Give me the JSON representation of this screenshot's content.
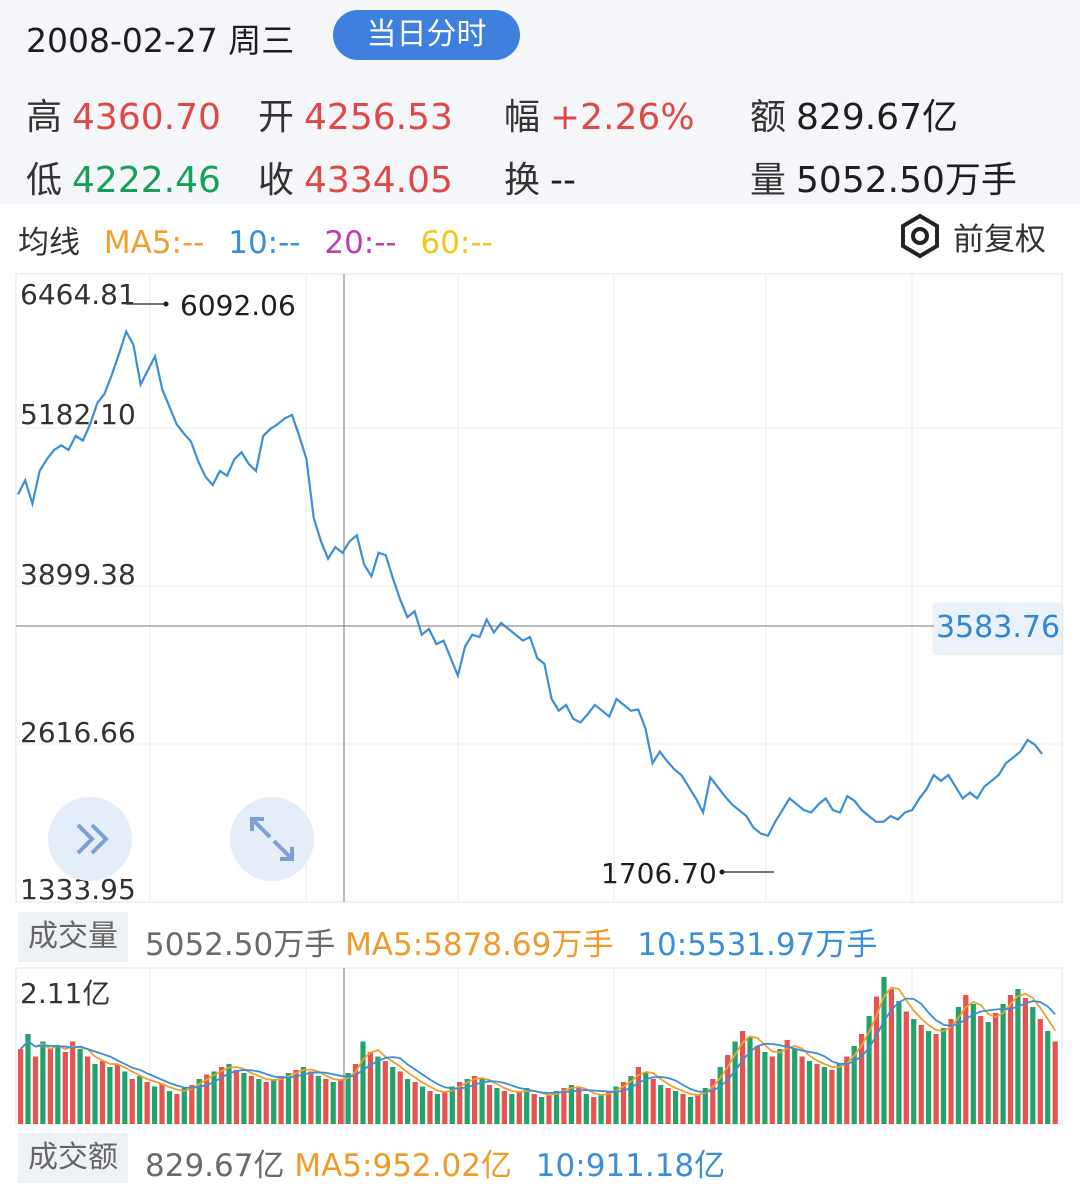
{
  "header": {
    "date": "2008-02-27 周三",
    "intraday_button": "当日分时",
    "stats": {
      "high_label": "高",
      "high": "4360.70",
      "open_label": "开",
      "open": "4256.53",
      "amp_label": "幅",
      "amp": "+2.26%",
      "amount_label": "额",
      "amount": "829.67亿",
      "low_label": "低",
      "low": "4222.46",
      "close_label": "收",
      "close": "4334.05",
      "turnover_label": "换",
      "turnover": "--",
      "volume_label": "量",
      "volume": "5052.50万手"
    }
  },
  "ma_bar": {
    "label": "均线",
    "ma5": "MA5:--",
    "ma10": "10:--",
    "ma20": "20:--",
    "ma60": "60:--",
    "adjust": "前复权",
    "colors": {
      "ma5": "#f0a030",
      "ma10": "#3a8fd8",
      "ma20": "#c23bb5",
      "ma60": "#f3c619"
    }
  },
  "price_axis": {
    "labels": [
      "6464.81",
      "5182.10",
      "3899.38",
      "2616.66",
      "1333.95"
    ],
    "max_label": "6092.06",
    "min_label": "1706.70",
    "crosshair_value": "3583.76"
  },
  "volume_bar": {
    "label": "成交量",
    "value": "5052.50万手",
    "ma5": "MA5:5878.69万手",
    "ma10": "10:5531.97万手",
    "axis_top": "2.11亿"
  },
  "amount_bar": {
    "label": "成交额",
    "value": "829.67亿",
    "ma5": "MA5:952.02亿",
    "ma10": "10:911.18亿"
  },
  "chart_data": {
    "type": "line",
    "y_range": [
      1333.95,
      6464.81
    ],
    "price_points": [
      [
        0,
        4700
      ],
      [
        1,
        4820
      ],
      [
        2,
        4620
      ],
      [
        3,
        4900
      ],
      [
        4,
        5000
      ],
      [
        5,
        5080
      ],
      [
        6,
        5120
      ],
      [
        7,
        5080
      ],
      [
        8,
        5200
      ],
      [
        9,
        5160
      ],
      [
        10,
        5300
      ],
      [
        11,
        5480
      ],
      [
        12,
        5560
      ],
      [
        13,
        5720
      ],
      [
        14,
        5900
      ],
      [
        15,
        6092
      ],
      [
        16,
        5980
      ],
      [
        17,
        5640
      ],
      [
        18,
        5760
      ],
      [
        19,
        5880
      ],
      [
        20,
        5600
      ],
      [
        21,
        5450
      ],
      [
        22,
        5300
      ],
      [
        23,
        5220
      ],
      [
        24,
        5150
      ],
      [
        25,
        4980
      ],
      [
        26,
        4850
      ],
      [
        27,
        4780
      ],
      [
        28,
        4900
      ],
      [
        29,
        4860
      ],
      [
        30,
        5000
      ],
      [
        31,
        5060
      ],
      [
        32,
        4960
      ],
      [
        33,
        4900
      ],
      [
        34,
        5200
      ],
      [
        35,
        5260
      ],
      [
        36,
        5300
      ],
      [
        37,
        5350
      ],
      [
        38,
        5380
      ],
      [
        39,
        5200
      ],
      [
        40,
        5000
      ],
      [
        41,
        4500
      ],
      [
        42,
        4300
      ],
      [
        43,
        4150
      ],
      [
        44,
        4250
      ],
      [
        45,
        4200
      ],
      [
        46,
        4300
      ],
      [
        47,
        4350
      ],
      [
        48,
        4100
      ],
      [
        49,
        4000
      ],
      [
        50,
        4200
      ],
      [
        51,
        4180
      ],
      [
        52,
        3980
      ],
      [
        53,
        3800
      ],
      [
        54,
        3650
      ],
      [
        55,
        3700
      ],
      [
        56,
        3500
      ],
      [
        57,
        3550
      ],
      [
        58,
        3420
      ],
      [
        59,
        3450
      ],
      [
        60,
        3300
      ],
      [
        61,
        3150
      ],
      [
        62,
        3400
      ],
      [
        63,
        3500
      ],
      [
        64,
        3480
      ],
      [
        65,
        3630
      ],
      [
        66,
        3520
      ],
      [
        67,
        3600
      ],
      [
        68,
        3550
      ],
      [
        69,
        3500
      ],
      [
        70,
        3450
      ],
      [
        71,
        3480
      ],
      [
        72,
        3300
      ],
      [
        73,
        3250
      ],
      [
        74,
        2950
      ],
      [
        75,
        2850
      ],
      [
        76,
        2900
      ],
      [
        77,
        2780
      ],
      [
        78,
        2750
      ],
      [
        79,
        2820
      ],
      [
        80,
        2900
      ],
      [
        81,
        2850
      ],
      [
        82,
        2800
      ],
      [
        83,
        2950
      ],
      [
        84,
        2900
      ],
      [
        85,
        2850
      ],
      [
        86,
        2860
      ],
      [
        87,
        2700
      ],
      [
        88,
        2400
      ],
      [
        89,
        2500
      ],
      [
        90,
        2420
      ],
      [
        91,
        2350
      ],
      [
        92,
        2300
      ],
      [
        93,
        2200
      ],
      [
        94,
        2100
      ],
      [
        95,
        1980
      ],
      [
        96,
        2280
      ],
      [
        97,
        2200
      ],
      [
        98,
        2120
      ],
      [
        99,
        2050
      ],
      [
        100,
        2000
      ],
      [
        101,
        1950
      ],
      [
        102,
        1850
      ],
      [
        103,
        1800
      ],
      [
        104,
        1780
      ],
      [
        105,
        1900
      ],
      [
        106,
        2000
      ],
      [
        107,
        2100
      ],
      [
        108,
        2050
      ],
      [
        109,
        2000
      ],
      [
        110,
        1980
      ],
      [
        111,
        2050
      ],
      [
        112,
        2100
      ],
      [
        113,
        2000
      ],
      [
        114,
        1980
      ],
      [
        115,
        2120
      ],
      [
        116,
        2080
      ],
      [
        117,
        2000
      ],
      [
        118,
        1950
      ],
      [
        119,
        1900
      ],
      [
        120,
        1900
      ],
      [
        121,
        1950
      ],
      [
        122,
        1920
      ],
      [
        123,
        1980
      ],
      [
        124,
        2000
      ],
      [
        125,
        2100
      ],
      [
        126,
        2180
      ],
      [
        127,
        2300
      ],
      [
        128,
        2250
      ],
      [
        129,
        2300
      ],
      [
        130,
        2200
      ],
      [
        131,
        2100
      ],
      [
        132,
        2150
      ],
      [
        133,
        2100
      ],
      [
        134,
        2200
      ],
      [
        135,
        2250
      ],
      [
        136,
        2300
      ],
      [
        137,
        2400
      ],
      [
        138,
        2450
      ],
      [
        139,
        2500
      ],
      [
        140,
        2600
      ],
      [
        141,
        2560
      ],
      [
        142,
        2480
      ]
    ],
    "volume_bars": [
      [
        0.5,
        1
      ],
      [
        0.6,
        0
      ],
      [
        0.45,
        1
      ],
      [
        0.55,
        0
      ],
      [
        0.5,
        1
      ],
      [
        0.52,
        0
      ],
      [
        0.48,
        1
      ],
      [
        0.55,
        1
      ],
      [
        0.5,
        0
      ],
      [
        0.45,
        1
      ],
      [
        0.4,
        0
      ],
      [
        0.42,
        1
      ],
      [
        0.38,
        0
      ],
      [
        0.4,
        1
      ],
      [
        0.35,
        0
      ],
      [
        0.3,
        1
      ],
      [
        0.32,
        0
      ],
      [
        0.28,
        1
      ],
      [
        0.25,
        0
      ],
      [
        0.27,
        1
      ],
      [
        0.22,
        0
      ],
      [
        0.2,
        1
      ],
      [
        0.24,
        0
      ],
      [
        0.26,
        1
      ],
      [
        0.3,
        0
      ],
      [
        0.33,
        1
      ],
      [
        0.35,
        0
      ],
      [
        0.38,
        1
      ],
      [
        0.4,
        0
      ],
      [
        0.36,
        1
      ],
      [
        0.34,
        0
      ],
      [
        0.32,
        1
      ],
      [
        0.3,
        0
      ],
      [
        0.28,
        1
      ],
      [
        0.3,
        0
      ],
      [
        0.32,
        1
      ],
      [
        0.34,
        0
      ],
      [
        0.36,
        1
      ],
      [
        0.38,
        0
      ],
      [
        0.35,
        1
      ],
      [
        0.32,
        0
      ],
      [
        0.3,
        1
      ],
      [
        0.28,
        0
      ],
      [
        0.3,
        1
      ],
      [
        0.34,
        0
      ],
      [
        0.4,
        1
      ],
      [
        0.55,
        0
      ],
      [
        0.48,
        1
      ],
      [
        0.45,
        0
      ],
      [
        0.42,
        1
      ],
      [
        0.38,
        0
      ],
      [
        0.35,
        1
      ],
      [
        0.3,
        0
      ],
      [
        0.28,
        1
      ],
      [
        0.25,
        0
      ],
      [
        0.22,
        1
      ],
      [
        0.2,
        0
      ],
      [
        0.22,
        1
      ],
      [
        0.25,
        0
      ],
      [
        0.28,
        1
      ],
      [
        0.3,
        0
      ],
      [
        0.32,
        1
      ],
      [
        0.3,
        0
      ],
      [
        0.26,
        1
      ],
      [
        0.24,
        0
      ],
      [
        0.22,
        1
      ],
      [
        0.2,
        0
      ],
      [
        0.22,
        1
      ],
      [
        0.24,
        0
      ],
      [
        0.2,
        1
      ],
      [
        0.18,
        0
      ],
      [
        0.2,
        1
      ],
      [
        0.22,
        0
      ],
      [
        0.24,
        1
      ],
      [
        0.26,
        0
      ],
      [
        0.24,
        1
      ],
      [
        0.2,
        0
      ],
      [
        0.18,
        1
      ],
      [
        0.2,
        0
      ],
      [
        0.22,
        1
      ],
      [
        0.25,
        0
      ],
      [
        0.28,
        1
      ],
      [
        0.32,
        0
      ],
      [
        0.38,
        1
      ],
      [
        0.34,
        0
      ],
      [
        0.3,
        1
      ],
      [
        0.26,
        0
      ],
      [
        0.24,
        1
      ],
      [
        0.22,
        0
      ],
      [
        0.2,
        1
      ],
      [
        0.18,
        0
      ],
      [
        0.2,
        1
      ],
      [
        0.24,
        0
      ],
      [
        0.3,
        1
      ],
      [
        0.38,
        0
      ],
      [
        0.46,
        1
      ],
      [
        0.55,
        0
      ],
      [
        0.62,
        1
      ],
      [
        0.58,
        0
      ],
      [
        0.52,
        1
      ],
      [
        0.48,
        0
      ],
      [
        0.45,
        1
      ],
      [
        0.5,
        0
      ],
      [
        0.56,
        1
      ],
      [
        0.5,
        0
      ],
      [
        0.45,
        1
      ],
      [
        0.42,
        0
      ],
      [
        0.4,
        1
      ],
      [
        0.38,
        0
      ],
      [
        0.36,
        1
      ],
      [
        0.4,
        0
      ],
      [
        0.45,
        1
      ],
      [
        0.52,
        0
      ],
      [
        0.6,
        1
      ],
      [
        0.72,
        0
      ],
      [
        0.85,
        1
      ],
      [
        0.98,
        0
      ],
      [
        0.9,
        1
      ],
      [
        0.82,
        0
      ],
      [
        0.75,
        1
      ],
      [
        0.7,
        0
      ],
      [
        0.66,
        1
      ],
      [
        0.62,
        0
      ],
      [
        0.6,
        1
      ],
      [
        0.64,
        0
      ],
      [
        0.7,
        1
      ],
      [
        0.78,
        0
      ],
      [
        0.86,
        1
      ],
      [
        0.8,
        0
      ],
      [
        0.72,
        1
      ],
      [
        0.68,
        0
      ],
      [
        0.74,
        1
      ],
      [
        0.8,
        0
      ],
      [
        0.86,
        1
      ],
      [
        0.9,
        0
      ],
      [
        0.84,
        1
      ],
      [
        0.78,
        0
      ],
      [
        0.7,
        1
      ],
      [
        0.62,
        0
      ],
      [
        0.55,
        1
      ]
    ]
  }
}
